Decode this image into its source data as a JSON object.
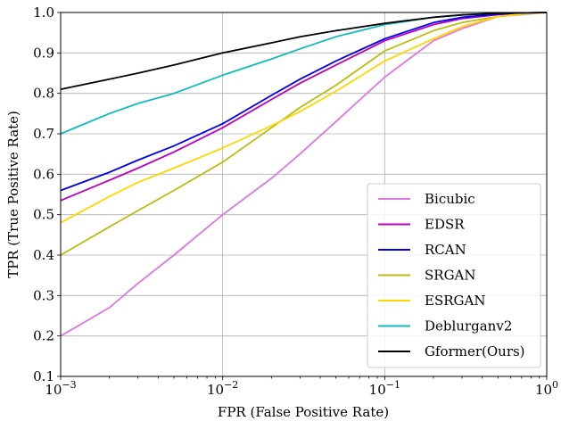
{
  "chart_data": {
    "type": "line",
    "xlabel": "FPR (False Positive Rate)",
    "ylabel": "TPR (True Positive Rate)",
    "x_scale": "log",
    "xlim": [
      0.001,
      1
    ],
    "ylim": [
      0.1,
      1.0
    ],
    "grid": true,
    "legend_position": "lower-right",
    "x_ticks": [
      {
        "value": 0.001,
        "base": "10",
        "exp": "−3"
      },
      {
        "value": 0.01,
        "base": "10",
        "exp": "−2"
      },
      {
        "value": 0.1,
        "base": "10",
        "exp": "−1"
      },
      {
        "value": 1,
        "base": "10",
        "exp": "0"
      }
    ],
    "y_ticks": [
      {
        "value": 0.1,
        "label": "0.1"
      },
      {
        "value": 0.2,
        "label": "0.2"
      },
      {
        "value": 0.3,
        "label": "0.3"
      },
      {
        "value": 0.4,
        "label": "0.4"
      },
      {
        "value": 0.5,
        "label": "0.5"
      },
      {
        "value": 0.6,
        "label": "0.6"
      },
      {
        "value": 0.7,
        "label": "0.7"
      },
      {
        "value": 0.8,
        "label": "0.8"
      },
      {
        "value": 0.9,
        "label": "0.9"
      },
      {
        "value": 1.0,
        "label": "1.0"
      }
    ],
    "series": [
      {
        "name": "Bicubic",
        "color": "#dd77dd",
        "x": [
          0.001,
          0.002,
          0.003,
          0.005,
          0.01,
          0.02,
          0.03,
          0.05,
          0.1,
          0.2,
          0.3,
          0.5,
          0.7,
          1.0
        ],
        "y": [
          0.2,
          0.27,
          0.33,
          0.4,
          0.5,
          0.59,
          0.65,
          0.73,
          0.84,
          0.93,
          0.96,
          0.99,
          0.995,
          1.0
        ]
      },
      {
        "name": "EDSR",
        "color": "#bb00bb",
        "x": [
          0.001,
          0.002,
          0.003,
          0.005,
          0.01,
          0.02,
          0.03,
          0.05,
          0.1,
          0.2,
          0.3,
          0.5,
          0.7,
          1.0
        ],
        "y": [
          0.535,
          0.585,
          0.615,
          0.655,
          0.715,
          0.785,
          0.825,
          0.87,
          0.93,
          0.97,
          0.985,
          0.995,
          0.998,
          1.0
        ]
      },
      {
        "name": "RCAN",
        "color": "#0000ee",
        "x": [
          0.001,
          0.002,
          0.003,
          0.005,
          0.01,
          0.02,
          0.03,
          0.05,
          0.1,
          0.2,
          0.3,
          0.5,
          0.7,
          1.0
        ],
        "y": [
          0.56,
          0.605,
          0.635,
          0.67,
          0.725,
          0.795,
          0.835,
          0.88,
          0.935,
          0.975,
          0.988,
          0.996,
          0.999,
          1.0
        ]
      },
      {
        "name": "SRGAN",
        "color": "#bbbb11",
        "x": [
          0.001,
          0.002,
          0.003,
          0.005,
          0.01,
          0.02,
          0.03,
          0.05,
          0.1,
          0.2,
          0.3,
          0.5,
          0.7,
          1.0
        ],
        "y": [
          0.4,
          0.47,
          0.51,
          0.56,
          0.63,
          0.715,
          0.765,
          0.82,
          0.905,
          0.955,
          0.975,
          0.99,
          0.996,
          1.0
        ]
      },
      {
        "name": "ESRGAN",
        "color": "#ffd700",
        "x": [
          0.001,
          0.002,
          0.003,
          0.005,
          0.01,
          0.02,
          0.03,
          0.05,
          0.1,
          0.2,
          0.3,
          0.5,
          0.7,
          1.0
        ],
        "y": [
          0.48,
          0.545,
          0.58,
          0.615,
          0.665,
          0.72,
          0.755,
          0.805,
          0.88,
          0.935,
          0.965,
          0.99,
          0.996,
          1.0
        ]
      },
      {
        "name": "Deblurganv2",
        "color": "#11bbbb",
        "x": [
          0.001,
          0.002,
          0.003,
          0.005,
          0.01,
          0.02,
          0.03,
          0.05,
          0.1,
          0.2,
          0.3,
          0.5,
          0.7,
          1.0
        ],
        "y": [
          0.7,
          0.75,
          0.775,
          0.8,
          0.845,
          0.885,
          0.91,
          0.94,
          0.97,
          0.988,
          0.994,
          0.998,
          0.999,
          1.0
        ]
      },
      {
        "name": "Gformer(Ours)",
        "color": "#000000",
        "x": [
          0.001,
          0.002,
          0.003,
          0.005,
          0.01,
          0.02,
          0.03,
          0.05,
          0.1,
          0.2,
          0.3,
          0.5,
          0.7,
          1.0
        ],
        "y": [
          0.81,
          0.835,
          0.85,
          0.87,
          0.9,
          0.925,
          0.94,
          0.955,
          0.973,
          0.988,
          0.994,
          0.998,
          0.999,
          1.0
        ]
      }
    ]
  }
}
